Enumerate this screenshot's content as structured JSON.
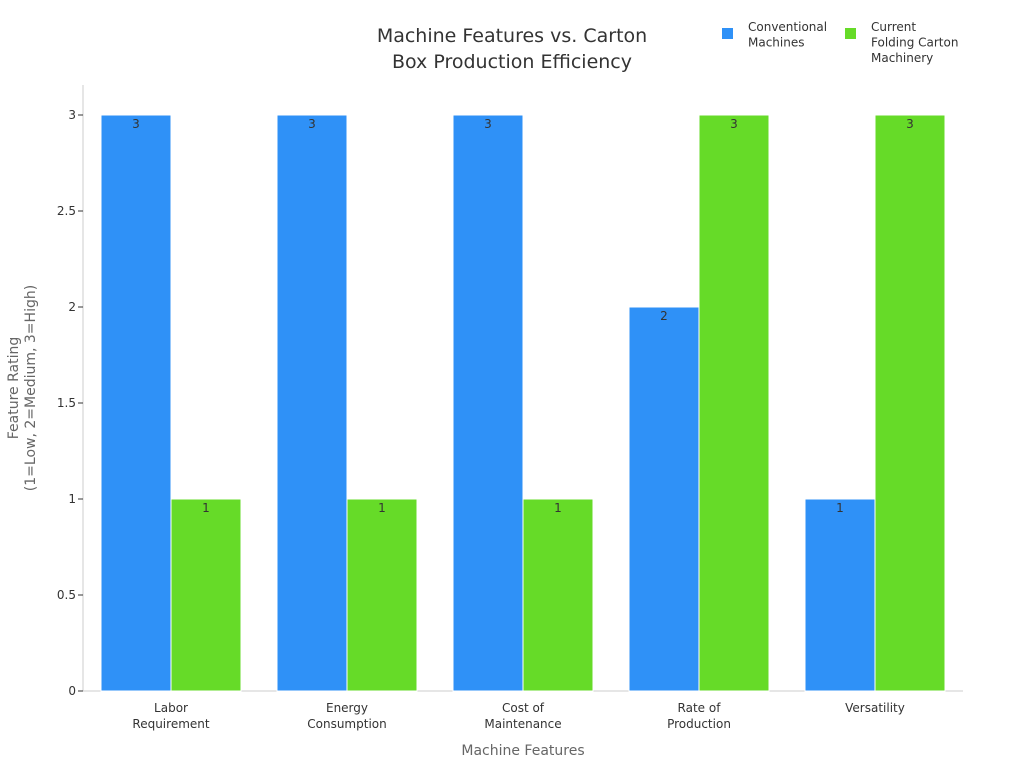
{
  "chart_data": {
    "type": "bar",
    "title_lines": [
      "Machine Features vs. Carton",
      "Box Production Efficiency"
    ],
    "categories": [
      [
        "Labor",
        "Requirement"
      ],
      [
        "Energy",
        "Consumption"
      ],
      [
        "Cost of",
        "Maintenance"
      ],
      [
        "Rate of",
        "Production"
      ],
      [
        "Versatility"
      ]
    ],
    "series": [
      {
        "name_lines": [
          "Conventional",
          "Machines"
        ],
        "color": "#2f91f7",
        "values": [
          3,
          3,
          3,
          2,
          1
        ]
      },
      {
        "name_lines": [
          "Current",
          "Folding Carton",
          "Machinery"
        ],
        "color": "#66db28",
        "values": [
          1,
          1,
          1,
          3,
          3
        ]
      }
    ],
    "xlabel": "Machine Features",
    "ylabel_lines": [
      "Feature Rating",
      "(1=Low, 2=Medium, 3=High)"
    ],
    "ylim": [
      0,
      3.2
    ],
    "yticks": [
      "0",
      "0.5",
      "1",
      "1.5",
      "2",
      "2.5",
      "3"
    ],
    "ytick_values": [
      0,
      0.5,
      1,
      1.5,
      2,
      2.5,
      3
    ],
    "grid": false,
    "legend_position": "top-right"
  }
}
